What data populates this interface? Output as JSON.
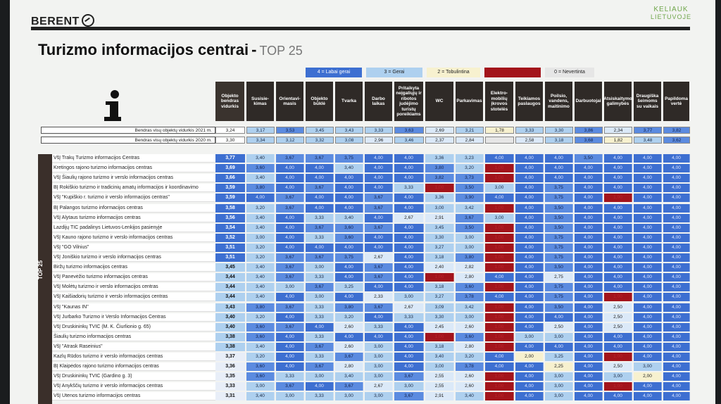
{
  "brand": "BERENT",
  "corner_logo": {
    "line1": "KELIAUK",
    "line2": "LIETUVOJE"
  },
  "title": "Turizmo informacijos centrai",
  "title_dash": "-",
  "title_suffix": "TOP 25",
  "legend": [
    {
      "label": "4 = Labai gerai",
      "color": "#3d6fd1"
    },
    {
      "label": "3 = Gerai",
      "color": "#aed0ef"
    },
    {
      "label": "2 = Tobulintina",
      "color": "#f7f1cf"
    },
    {
      "label": "1 = Netenkina",
      "color": "#a3141b"
    },
    {
      "label": "0 = Nevertinta",
      "color": "#e6e6e6"
    }
  ],
  "columns": [
    "Objekto bendras vidurkis",
    "Susisie-kimas",
    "Orientavi-masis",
    "Objekto būklė",
    "Tvarka",
    "Darbo laikas",
    "Pritaikyta neįgaliųjų ir ribotos judėjimo turistų poreikiams",
    "WC",
    "Parkavimas",
    "Elektro-mobilių įkrovos stotelės",
    "Teikiamos paslaugos",
    "Poilsio, vandens, maitinimo",
    "Darbuotojai",
    "Atsiskaitymo galimybės",
    "Draugiška šeimoms su vaikais",
    "Papildoma vertė"
  ],
  "avg_rows": [
    {
      "label": "Bendras visų objektų vidurkis 2021 m.",
      "values": [
        "3,24",
        "3,17",
        "3,53",
        "3,45",
        "3,43",
        "3,33",
        "3,63",
        "2,69",
        "3,21",
        "1,78",
        "3,33",
        "3,30",
        "3,86",
        "2,34",
        "3,77",
        "3,82"
      ]
    },
    {
      "label": "Bendras visų objektų vidurkis 2020 m.",
      "values": [
        "3,30",
        "3,34",
        "3,12",
        "3,32",
        "3,08",
        "2,96",
        "3,46",
        "2,37",
        "2,84",
        "",
        "2,58",
        "3,18",
        "3,68",
        "1,82",
        "3,48",
        "3,62"
      ]
    }
  ],
  "sidebar_label": "TOP 25",
  "rows": [
    {
      "name": "VšĮ Trakų Turizmo informacijos Centras",
      "values": [
        "3,77",
        "3,40",
        "3,67",
        "3,67",
        "3,75",
        "4,00",
        "4,00",
        "3,36",
        "3,23",
        "4,00",
        "4,00",
        "4,00",
        "3,50",
        "4,00",
        "4,00",
        "4,00"
      ]
    },
    {
      "name": "Kretingos rajono turizmo informacijos centras",
      "values": [
        "3,69",
        "3,60",
        "4,00",
        "4,00",
        "3,40",
        "4,00",
        "4,00",
        "3,80",
        "3,20",
        "1,00",
        "4,00",
        "4,00",
        "4,00",
        "4,00",
        "4,00",
        "4,00"
      ]
    },
    {
      "name": "VšĮ Šiaulių rajono turizmo ir verslo informacijos centras",
      "values": [
        "3,66",
        "3,40",
        "4,00",
        "4,00",
        "4,00",
        "4,00",
        "4,00",
        "3,82",
        "3,73",
        "1,00",
        "4,00",
        "4,00",
        "4,00",
        "4,00",
        "4,00",
        "4,00"
      ]
    },
    {
      "name": "BĮ Rokiškio turizmo ir tradicinių amatų informacijos ir koordinavimo",
      "values": [
        "3,59",
        "3,80",
        "4,00",
        "3,67",
        "4,00",
        "4,00",
        "3,33",
        "1,00",
        "3,50",
        "3,00",
        "4,00",
        "3,75",
        "4,00",
        "4,00",
        "4,00",
        "4,00"
      ]
    },
    {
      "name": "VšĮ \"Kupiškio r. turizmo ir verslo informacijos centras\"",
      "values": [
        "3,59",
        "4,00",
        "3,67",
        "4,00",
        "4,00",
        "3,67",
        "4,00",
        "3,36",
        "3,90",
        "4,00",
        "4,00",
        "3,75",
        "4,00",
        "1,00",
        "4,00",
        "4,00"
      ]
    },
    {
      "name": "BĮ Palangos turizmo informacijos centras",
      "values": [
        "3,58",
        "3,20",
        "3,67",
        "4,00",
        "4,00",
        "3,67",
        "4,00",
        "3,00",
        "3,42",
        "1,00",
        "4,00",
        "3,50",
        "4,00",
        "4,00",
        "4,00",
        "4,00"
      ]
    },
    {
      "name": "VšĮ Alytaus turizmo informacijos centras",
      "values": [
        "3,56",
        "3,40",
        "4,00",
        "3,33",
        "3,40",
        "4,00",
        "2,67",
        "2,91",
        "3,67",
        "3,00",
        "4,00",
        "3,50",
        "4,00",
        "4,00",
        "4,00",
        "4,00"
      ]
    },
    {
      "name": "Lazdijų TIC padalinys Lietuvos-Lenkijos pasienyje",
      "values": [
        "3,54",
        "3,40",
        "4,00",
        "3,67",
        "3,60",
        "3,67",
        "4,00",
        "3,45",
        "3,50",
        "1,00",
        "4,00",
        "3,50",
        "4,00",
        "4,00",
        "4,00",
        "4,00"
      ]
    },
    {
      "name": "VšĮ Kauno rajono turizmo ir verslo informacijos centras",
      "values": [
        "3,52",
        "3,00",
        "4,00",
        "3,33",
        "3,60",
        "4,00",
        "4,00",
        "3,30",
        "3,00",
        "1,00",
        "4,00",
        "3,75",
        "4,00",
        "4,00",
        "4,00",
        "4,00"
      ]
    },
    {
      "name": "VšĮ \"GO Vilnius\"",
      "values": [
        "3,51",
        "3,20",
        "4,00",
        "4,00",
        "4,00",
        "4,00",
        "4,00",
        "3,27",
        "3,00",
        "1,00",
        "4,00",
        "3,75",
        "4,00",
        "4,00",
        "4,00",
        "4,00"
      ]
    },
    {
      "name": "VšĮ Joniškio turizmo ir verslo informacijos centras",
      "values": [
        "3,51",
        "3,20",
        "3,67",
        "3,67",
        "3,75",
        "2,67",
        "4,00",
        "3,18",
        "3,80",
        "1,00",
        "4,00",
        "3,75",
        "4,00",
        "4,00",
        "4,00",
        "4,00"
      ]
    },
    {
      "name": "Biržų turizmo informacijos centras",
      "values": [
        "3,45",
        "3,40",
        "3,67",
        "3,00",
        "4,00",
        "3,67",
        "4,00",
        "2,40",
        "2,82",
        "1,00",
        "4,00",
        "3,50",
        "4,00",
        "4,00",
        "4,00",
        "4,00"
      ]
    },
    {
      "name": "VšĮ Panevėžio turizmo informacijos centras",
      "values": [
        "3,44",
        "3,40",
        "3,67",
        "3,33",
        "4,00",
        "3,67",
        "4,00",
        "1,00",
        "2,80",
        "4,00",
        "4,00",
        "2,75",
        "4,00",
        "4,00",
        "4,00",
        "4,00"
      ]
    },
    {
      "name": "VšĮ Molėtų turizmo ir verslo informacijos centras",
      "values": [
        "3,44",
        "3,40",
        "3,00",
        "3,67",
        "3,25",
        "4,00",
        "4,00",
        "3,18",
        "3,60",
        "1,00",
        "4,00",
        "3,75",
        "4,00",
        "4,00",
        "4,00",
        "4,00"
      ]
    },
    {
      "name": "VšĮ Kaišiadorių turizmo ir verslo informacijos centras",
      "values": [
        "3,44",
        "3,40",
        "4,00",
        "3,00",
        "4,00",
        "2,33",
        "3,00",
        "3,27",
        "3,78",
        "4,00",
        "4,00",
        "3,75",
        "4,00",
        "1,00",
        "4,00",
        "4,00"
      ]
    },
    {
      "name": "VšĮ \"Kaunas IN\"",
      "values": [
        "3,43",
        "3,80",
        "3,67",
        "3,33",
        "3,80",
        "3,67",
        "2,67",
        "3,09",
        "3,42",
        "1,00",
        "4,00",
        "3,50",
        "4,00",
        "2,50",
        "4,00",
        "4,00"
      ]
    },
    {
      "name": "VšĮ Jurbarko Turizmo ir Verslo Informacijos Centras",
      "values": [
        "3,40",
        "3,20",
        "4,00",
        "3,33",
        "3,20",
        "4,00",
        "3,33",
        "3,30",
        "3,00",
        "1,00",
        "4,00",
        "4,00",
        "4,00",
        "2,50",
        "4,00",
        "4,00"
      ]
    },
    {
      "name": "VšĮ Druskininkų TVIC (M. K. Čiurlionio g. 65)",
      "values": [
        "3,40",
        "3,60",
        "3,67",
        "4,00",
        "2,60",
        "3,33",
        "4,00",
        "2,45",
        "2,60",
        "1,00",
        "4,00",
        "2,50",
        "4,00",
        "2,50",
        "4,00",
        "4,00"
      ]
    },
    {
      "name": "Šiaulių turizmo informacijos centras",
      "values": [
        "3,38",
        "3,60",
        "4,00",
        "3,33",
        "4,00",
        "4,00",
        "4,00",
        "1,00",
        "3,60",
        "1,00",
        "3,00",
        "3,00",
        "4,00",
        "4,00",
        "4,00",
        "4,00"
      ]
    },
    {
      "name": "VšĮ \"Atrask Raseinius\"",
      "values": [
        "3,38",
        "3,40",
        "4,00",
        "3,67",
        "2,60",
        "3,00",
        "4,00",
        "3,18",
        "2,80",
        "1,00",
        "4,00",
        "4,00",
        "4,00",
        "4,00",
        "4,00",
        "4,00"
      ]
    },
    {
      "name": "Kazlų Rūdos turizmo ir verslo informacijos centras",
      "values": [
        "3,37",
        "3,20",
        "4,00",
        "3,33",
        "3,67",
        "3,00",
        "4,00",
        "3,40",
        "3,20",
        "4,00",
        "2,00",
        "3,25",
        "4,00",
        "1,00",
        "4,00",
        "4,00"
      ]
    },
    {
      "name": "BĮ Klaipėdos rajono turizmo informacijos centras",
      "values": [
        "3,36",
        "3,60",
        "4,00",
        "3,67",
        "2,80",
        "3,00",
        "4,00",
        "3,00",
        "3,78",
        "4,00",
        "4,00",
        "2,25",
        "4,00",
        "2,50",
        "3,00",
        "4,00"
      ]
    },
    {
      "name": "VšĮ Druskininkų TVIC (Gardino g. 3)",
      "values": [
        "3,35",
        "3,60",
        "3,33",
        "3,00",
        "3,40",
        "3,00",
        "3,67",
        "2,55",
        "2,60",
        "1,00",
        "4,00",
        "3,00",
        "4,00",
        "3,00",
        "2,00",
        "4,00"
      ]
    },
    {
      "name": "VšĮ Anykščių turizmo ir verslo informacijos centras",
      "values": [
        "3,33",
        "3,00",
        "3,67",
        "4,00",
        "3,67",
        "2,67",
        "3,00",
        "2,55",
        "2,60",
        "1,00",
        "4,00",
        "3,00",
        "4,00",
        "1,00",
        "4,00",
        "4,00"
      ]
    },
    {
      "name": "VšĮ Utenos turizmo informacijos centras",
      "values": [
        "3,31",
        "3,40",
        "3,00",
        "3,33",
        "3,00",
        "3,00",
        "3,67",
        "2,91",
        "3,40",
        "1,00",
        "4,00",
        "3,00",
        "4,00",
        "4,00",
        "4,00",
        "4,00"
      ]
    }
  ]
}
